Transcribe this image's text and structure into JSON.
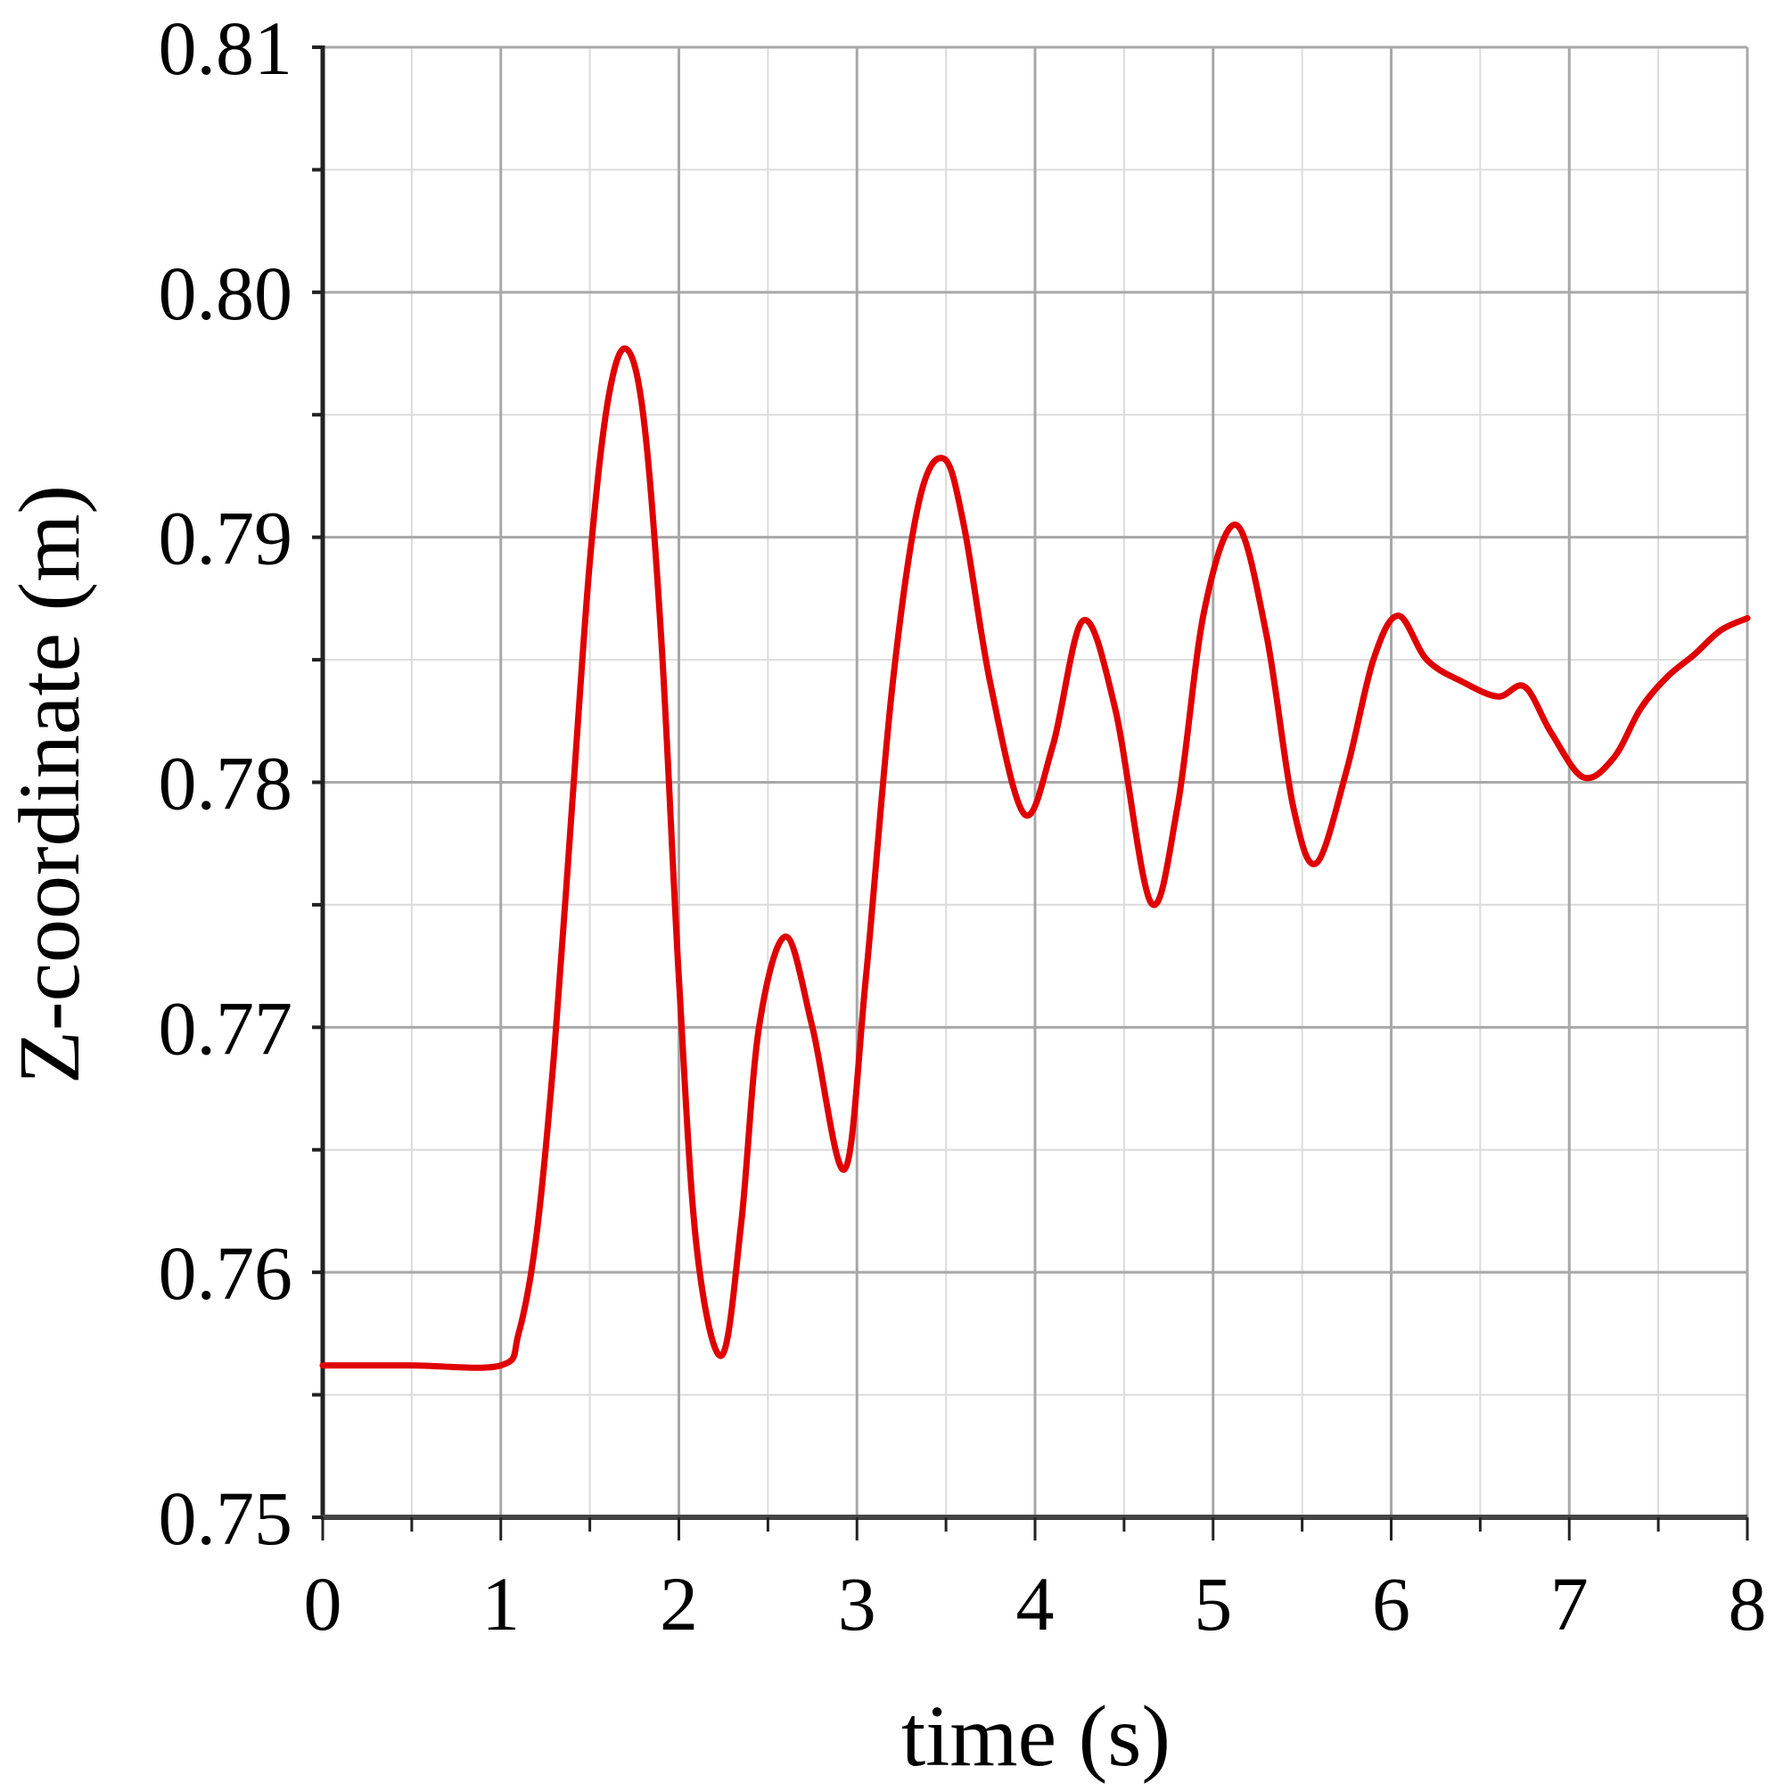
{
  "chart_data": {
    "type": "line",
    "title": "",
    "xlabel": "time (s)",
    "ylabel": "Z-coordinate (m)",
    "xlim": [
      0,
      8
    ],
    "ylim": [
      0.75,
      0.81
    ],
    "xticks": [
      "0",
      "1",
      "2",
      "3",
      "4",
      "5",
      "6",
      "7",
      "8"
    ],
    "yticks": [
      "0.75",
      "0.76",
      "0.77",
      "0.78",
      "0.79",
      "0.80",
      "0.81"
    ],
    "grid": true,
    "legend": null,
    "series": [
      {
        "name": "Z-coordinate",
        "color": "#e00000",
        "x": [
          0,
          0.5,
          1.0,
          1.1,
          1.2,
          1.3,
          1.4,
          1.5,
          1.6,
          1.7,
          1.8,
          1.9,
          2.0,
          2.1,
          2.24,
          2.35,
          2.45,
          2.6,
          2.75,
          2.93,
          3.05,
          3.2,
          3.35,
          3.49,
          3.6,
          3.75,
          3.94,
          4.1,
          4.27,
          4.45,
          4.65,
          4.8,
          4.95,
          5.13,
          5.3,
          5.45,
          5.58,
          5.75,
          5.9,
          6.04,
          6.2,
          6.4,
          6.6,
          6.75,
          6.9,
          7.08,
          7.25,
          7.4,
          7.55,
          7.7,
          7.85,
          8.0
        ],
        "values": [
          0.7562,
          0.7562,
          0.7562,
          0.7575,
          0.7615,
          0.769,
          0.779,
          0.789,
          0.7955,
          0.7977,
          0.795,
          0.786,
          0.772,
          0.761,
          0.7566,
          0.762,
          0.77,
          0.7737,
          0.77,
          0.7642,
          0.772,
          0.784,
          0.7915,
          0.7932,
          0.7905,
          0.784,
          0.7787,
          0.7815,
          0.7866,
          0.783,
          0.7751,
          0.779,
          0.787,
          0.7905,
          0.786,
          0.779,
          0.7767,
          0.7805,
          0.785,
          0.7868,
          0.785,
          0.7841,
          0.7835,
          0.7839,
          0.782,
          0.7802,
          0.781,
          0.783,
          0.7843,
          0.7852,
          0.7862,
          0.7867
        ]
      }
    ]
  }
}
